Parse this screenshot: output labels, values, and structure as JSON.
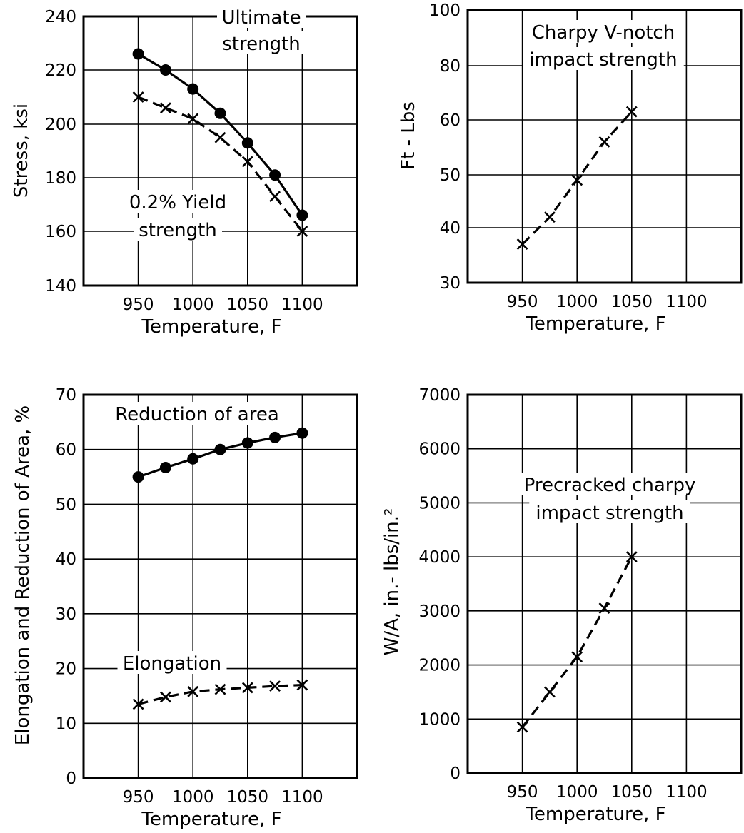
{
  "chart_data": [
    {
      "id": "stress",
      "type": "line",
      "title": "",
      "xlabel": "Temperature, F",
      "ylabel": "Stress, ksi",
      "xlim": [
        900,
        1150
      ],
      "ylim": [
        140,
        240
      ],
      "xticks": [
        950,
        1000,
        1050,
        1100
      ],
      "xtick_labels": [
        "950",
        "1000",
        "1050",
        "1100"
      ],
      "yticks": [
        140,
        160,
        180,
        200,
        220,
        240
      ],
      "ytick_labels": [
        "140",
        "160",
        "180",
        "200",
        "220",
        "240"
      ],
      "grid": true,
      "series": [
        {
          "label": "Ultimate strength",
          "marker": "dot",
          "line": "solid",
          "x": [
            950,
            975,
            1000,
            1025,
            1050,
            1075,
            1100
          ],
          "y": [
            226,
            220,
            213,
            204,
            193,
            181,
            166
          ]
        },
        {
          "label": "0.2% Yield strength",
          "marker": "x",
          "line": "dashed",
          "x": [
            950,
            975,
            1000,
            1025,
            1050,
            1075,
            1100
          ],
          "y": [
            210,
            206,
            202,
            195,
            186,
            173,
            160
          ]
        }
      ],
      "annotations": [
        {
          "lines": [
            "Ultimate",
            "strength"
          ]
        },
        {
          "lines": [
            "0.2% Yield",
            "strength"
          ]
        }
      ]
    },
    {
      "id": "charpy",
      "type": "line",
      "title": "",
      "xlabel": "Temperature, F",
      "ylabel": "Ft - Lbs",
      "xlim": [
        900,
        1150
      ],
      "ylim": [
        30,
        100
      ],
      "xticks": [
        950,
        1000,
        1050,
        1100
      ],
      "xtick_labels": [
        "950",
        "1000",
        "1050",
        "1100"
      ],
      "yticks": [
        30,
        40,
        50,
        60,
        80,
        100
      ],
      "ytick_labels": [
        "30",
        "40",
        "50",
        "60",
        "80",
        "100"
      ],
      "axis_scale": "nonlinear (gridlines at printed ticks)",
      "grid": true,
      "series": [
        {
          "label": "Charpy V-notch impact strength",
          "marker": "x",
          "line": "dashed",
          "x": [
            950,
            975,
            1000,
            1025,
            1050
          ],
          "y": [
            37,
            42,
            49,
            56,
            63
          ]
        }
      ],
      "annotations": [
        {
          "lines": [
            "Charpy V-notch",
            "impact strength"
          ]
        }
      ]
    },
    {
      "id": "elongation",
      "type": "line",
      "title": "",
      "xlabel": "Temperature, F",
      "ylabel": "Elongation and Reduction of Area, %",
      "xlim": [
        900,
        1150
      ],
      "ylim": [
        0,
        70
      ],
      "xticks": [
        950,
        1000,
        1050,
        1100
      ],
      "xtick_labels": [
        "950",
        "1000",
        "1050",
        "1100"
      ],
      "yticks": [
        0,
        10,
        20,
        30,
        40,
        50,
        60,
        70
      ],
      "ytick_labels": [
        "0",
        "10",
        "20",
        "30",
        "40",
        "50",
        "60",
        "70"
      ],
      "grid": true,
      "series": [
        {
          "label": "Reduction of area",
          "marker": "dot",
          "line": "solid",
          "x": [
            950,
            975,
            1000,
            1025,
            1050,
            1075,
            1100
          ],
          "y": [
            55,
            56.7,
            58.3,
            60,
            61.2,
            62.2,
            63
          ]
        },
        {
          "label": "Elongation",
          "marker": "x",
          "line": "dashed",
          "x": [
            950,
            975,
            1000,
            1025,
            1050,
            1075,
            1100
          ],
          "y": [
            13.5,
            14.8,
            15.8,
            16.2,
            16.5,
            16.8,
            17
          ]
        }
      ],
      "annotations": [
        {
          "lines": [
            "Reduction of area"
          ]
        },
        {
          "lines": [
            "Elongation"
          ]
        }
      ]
    },
    {
      "id": "precracked",
      "type": "line",
      "title": "",
      "xlabel": "Temperature, F",
      "ylabel": "W/A, in.- lbs/in.²",
      "xlim": [
        900,
        1150
      ],
      "ylim": [
        0,
        7000
      ],
      "xticks": [
        950,
        1000,
        1050,
        1100
      ],
      "xtick_labels": [
        "950",
        "1000",
        "1050",
        "1100"
      ],
      "yticks": [
        0,
        1000,
        2000,
        3000,
        4000,
        5000,
        6000,
        7000
      ],
      "ytick_labels": [
        "0",
        "1000",
        "2000",
        "3000",
        "4000",
        "5000",
        "6000",
        "7000"
      ],
      "grid": true,
      "series": [
        {
          "label": "Precracked charpy impact strength",
          "marker": "x",
          "line": "dashed",
          "x": [
            950,
            975,
            1000,
            1025,
            1050
          ],
          "y": [
            850,
            1500,
            2150,
            3050,
            4000
          ]
        }
      ],
      "annotations": [
        {
          "lines": [
            "Precracked charpy",
            "impact strength"
          ]
        }
      ]
    }
  ]
}
